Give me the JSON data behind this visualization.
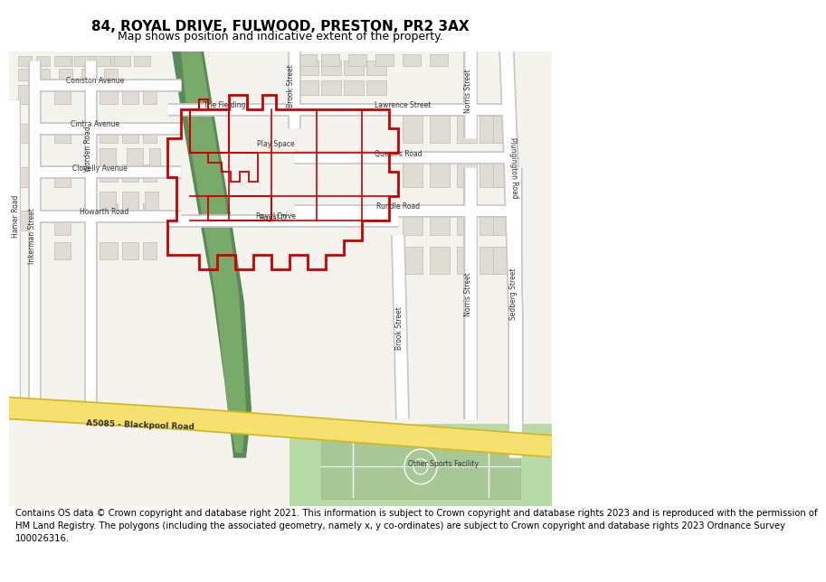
{
  "title": "84, ROYAL DRIVE, FULWOOD, PRESTON, PR2 3AX",
  "subtitle": "Map shows position and indicative extent of the property.",
  "footer": "Contains OS data © Crown copyright and database right 2021. This information is subject to Crown copyright and database rights 2023 and is reproduced with the permission of\nHM Land Registry. The polygons (including the associated geometry, namely x, y co-ordinates) are subject to Crown copyright and database rights 2023 Ordnance Survey\n100026316.",
  "bg_color": "#f5f3ee",
  "road_color": "#ffffff",
  "road_edge_color": "#c8c8c8",
  "building_color": "#e0dcd4",
  "building_edge": "#c0bcb4",
  "green_dark": "#5a8a5a",
  "green_light": "#c8e6b8",
  "green_mid": "#8ab87a",
  "major_road_color": "#f5e070",
  "major_road_edge": "#d4b820",
  "property_color": "#cc0000",
  "sports_green": "#b8d9a8",
  "sports_line": "#ffffff",
  "title_fs": 11,
  "subtitle_fs": 9,
  "footer_fs": 7.2,
  "label_fs": 6.5
}
